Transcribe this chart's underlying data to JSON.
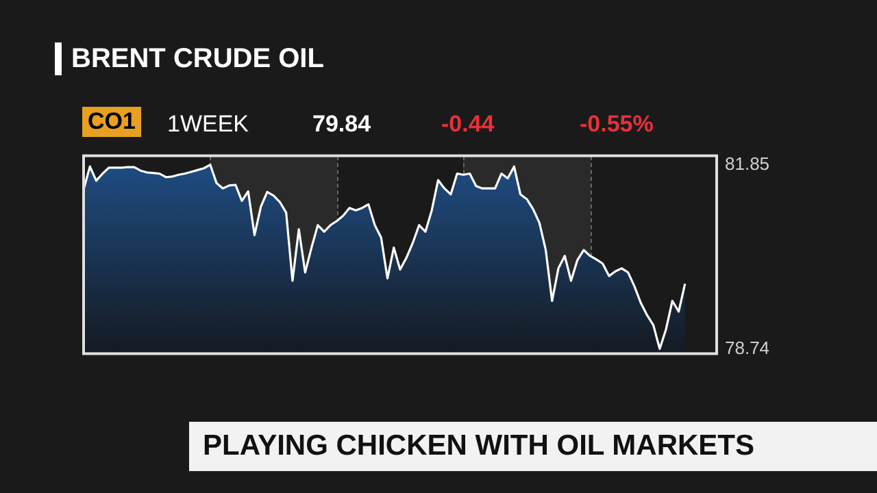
{
  "chart_data": {
    "type": "area",
    "title": "BRENT CRUDE OIL",
    "subtitle": "CO1",
    "annotations": [
      "1WEEK",
      "79.84",
      "-0.44",
      "-0.55%",
      "PLAYING CHICKEN WITH OIL MARKETS"
    ],
    "categories": [
      null,
      null,
      null,
      null,
      null,
      null,
      null,
      null,
      null,
      null,
      null,
      null,
      null,
      null,
      null,
      null,
      null,
      null,
      null,
      null,
      null,
      null,
      null,
      null,
      null,
      null,
      null,
      null,
      null,
      null,
      null,
      null,
      null,
      null,
      null,
      null,
      null,
      null,
      null,
      null,
      null,
      null,
      null,
      null,
      null,
      null,
      null,
      null,
      null,
      null,
      null,
      null,
      null,
      null,
      null,
      null,
      null,
      null,
      null,
      null,
      null,
      null,
      null,
      null,
      null,
      null,
      null,
      null,
      null,
      null,
      null,
      null,
      null,
      null,
      null,
      null,
      null,
      null,
      null,
      null,
      null,
      null,
      null,
      null,
      null,
      null,
      null,
      null,
      null,
      null,
      null,
      null,
      null,
      null,
      null,
      null,
      null,
      null,
      null,
      null,
      null
    ],
    "ylim": [
      78.66,
      82.0
    ],
    "yticks": [
      81.85,
      78.74
    ],
    "grid": false,
    "line_style": "solid",
    "marker": "none",
    "tick_labels": "y",
    "legend": false,
    "series": [
      {
        "color": "#ffffff",
        "values": [
          81.43,
          81.82,
          81.58,
          81.7,
          81.8,
          81.8,
          81.8,
          81.81,
          81.81,
          81.75,
          81.72,
          81.71,
          81.7,
          81.64,
          81.65,
          81.68,
          81.7,
          81.73,
          81.76,
          81.79,
          81.85,
          81.54,
          81.45,
          81.5,
          81.51,
          81.24,
          81.4,
          80.66,
          81.14,
          81.39,
          81.33,
          81.22,
          81.04,
          79.89,
          80.76,
          80.03,
          80.45,
          80.83,
          80.72,
          80.83,
          80.9,
          80.99,
          81.12,
          81.08,
          81.12,
          81.18,
          80.83,
          80.62,
          79.93,
          80.45,
          80.08,
          80.28,
          80.53,
          80.83,
          80.72,
          81.08,
          81.59,
          81.45,
          81.35,
          81.7,
          81.68,
          81.7,
          81.49,
          81.45,
          81.45,
          81.45,
          81.7,
          81.62,
          81.82,
          81.35,
          81.27,
          81.1,
          80.87,
          80.41,
          79.55,
          80.1,
          80.31,
          79.89,
          80.24,
          80.41,
          80.31,
          80.25,
          80.18,
          79.97,
          80.05,
          80.1,
          80.03,
          79.8,
          79.52,
          79.31,
          79.14,
          78.74,
          79.07,
          79.55,
          79.37,
          79.84,
          null,
          null,
          null,
          null,
          null
        ]
      }
    ]
  }
}
